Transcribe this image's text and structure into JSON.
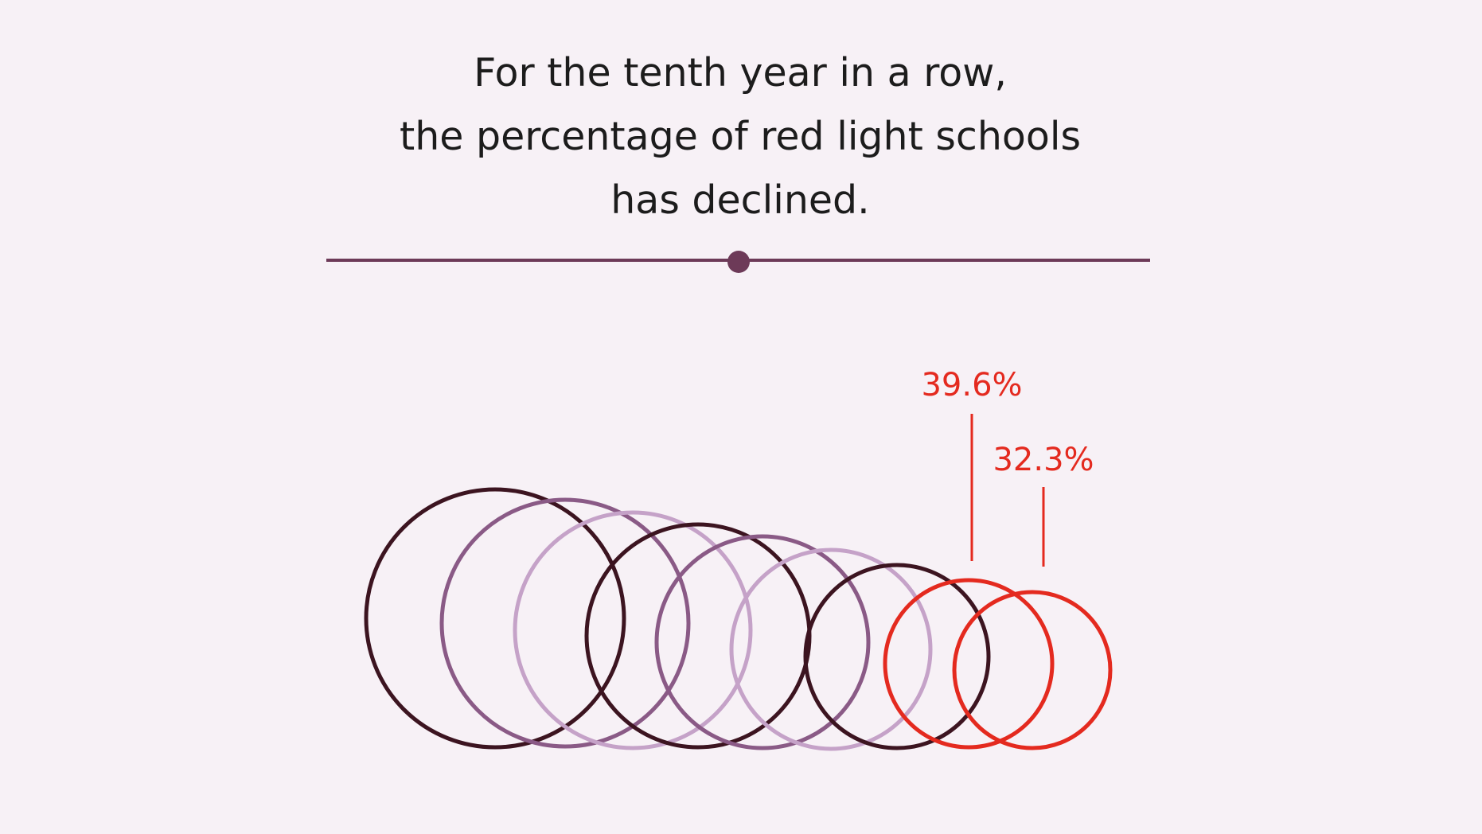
{
  "header": {
    "title_lines": [
      "For the tenth year in a row,",
      "the percentage of red light schools",
      "has declined."
    ]
  },
  "colors": {
    "background": "#f7f1f6",
    "divider": "#6d3a58",
    "dark": "#3c1420",
    "mid": "#8a5a86",
    "light": "#c5a2c8",
    "highlight": "#e42a1f"
  },
  "chart_data": {
    "type": "proportional-circles",
    "series": [
      {
        "shade": "dark"
      },
      {
        "shade": "mid"
      },
      {
        "shade": "light"
      },
      {
        "shade": "dark"
      },
      {
        "shade": "mid"
      },
      {
        "shade": "light"
      },
      {
        "shade": "dark"
      },
      {
        "shade": "highlight",
        "label": "39.6%"
      },
      {
        "shade": "highlight",
        "label": "32.3%"
      }
    ]
  }
}
